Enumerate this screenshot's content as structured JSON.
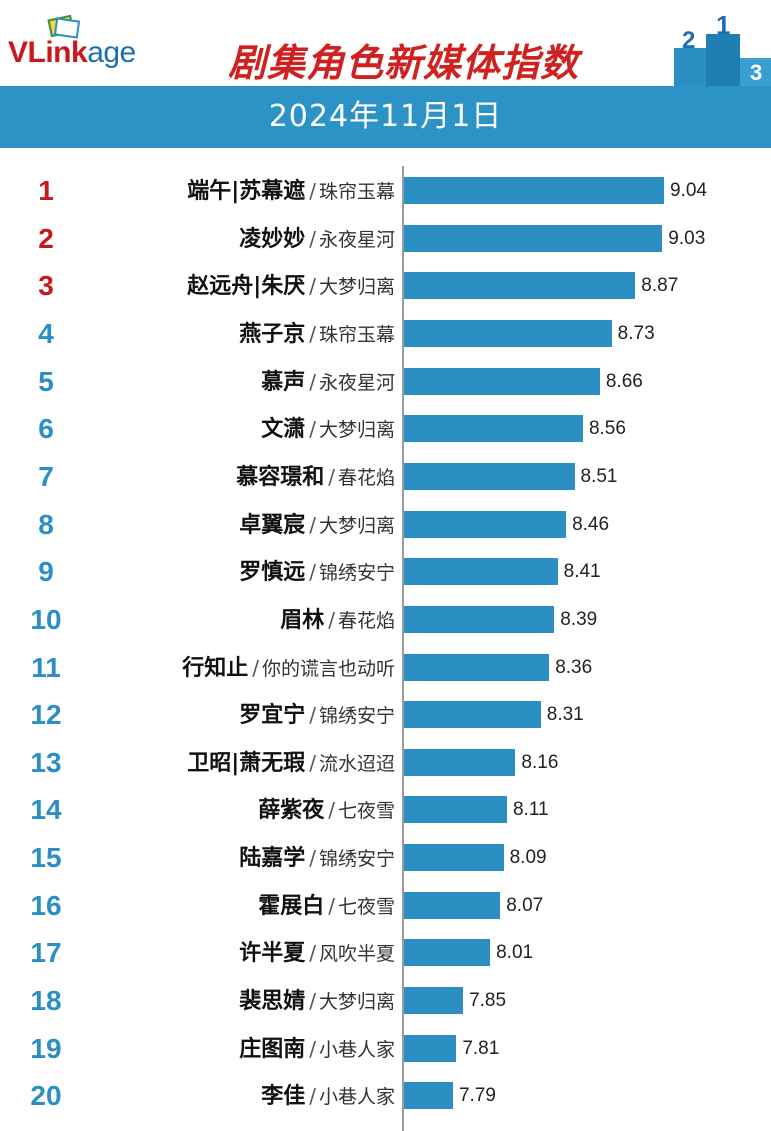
{
  "header": {
    "logo_text_a": "VLink",
    "logo_text_b": "age",
    "title": "剧集角色新媒体指数",
    "date": "2024年11月1日"
  },
  "colors": {
    "top_rank": "#c8181e",
    "other_rank": "#2b8fc4",
    "bar": "#2b8fc4",
    "banner": "#2b93c6",
    "title": "#d02020"
  },
  "chart_data": {
    "type": "bar",
    "orientation": "horizontal",
    "title": "剧集角色新媒体指数",
    "subtitle": "2024年11月1日",
    "xlim": [
      0,
      9.04
    ],
    "rows": [
      {
        "rank": "1",
        "character": "端午|苏幕遮",
        "drama": "珠帘玉幕",
        "value": 9.04,
        "value_label": "9.04"
      },
      {
        "rank": "2",
        "character": "凌妙妙",
        "drama": "永夜星河",
        "value": 9.03,
        "value_label": "9.03"
      },
      {
        "rank": "3",
        "character": "赵远舟|朱厌",
        "drama": "大梦归离",
        "value": 8.87,
        "value_label": "8.87"
      },
      {
        "rank": "4",
        "character": "燕子京",
        "drama": "珠帘玉幕",
        "value": 8.73,
        "value_label": "8.73"
      },
      {
        "rank": "5",
        "character": "慕声",
        "drama": "永夜星河",
        "value": 8.66,
        "value_label": "8.66"
      },
      {
        "rank": "6",
        "character": "文潇",
        "drama": "大梦归离",
        "value": 8.56,
        "value_label": "8.56"
      },
      {
        "rank": "7",
        "character": "慕容璟和",
        "drama": "春花焰",
        "value": 8.51,
        "value_label": "8.51"
      },
      {
        "rank": "8",
        "character": "卓翼宸",
        "drama": "大梦归离",
        "value": 8.46,
        "value_label": "8.46"
      },
      {
        "rank": "9",
        "character": "罗慎远",
        "drama": "锦绣安宁",
        "value": 8.41,
        "value_label": "8.41"
      },
      {
        "rank": "10",
        "character": "眉林",
        "drama": "春花焰",
        "value": 8.39,
        "value_label": "8.39"
      },
      {
        "rank": "11",
        "character": "行知止",
        "drama": "你的谎言也动听",
        "value": 8.36,
        "value_label": "8.36"
      },
      {
        "rank": "12",
        "character": "罗宜宁",
        "drama": "锦绣安宁",
        "value": 8.31,
        "value_label": "8.31"
      },
      {
        "rank": "13",
        "character": "卫昭|萧无瑕",
        "drama": "流水迢迢",
        "value": 8.16,
        "value_label": "8.16"
      },
      {
        "rank": "14",
        "character": "薛紫夜",
        "drama": "七夜雪",
        "value": 8.11,
        "value_label": "8.11"
      },
      {
        "rank": "15",
        "character": "陆嘉学",
        "drama": "锦绣安宁",
        "value": 8.09,
        "value_label": "8.09"
      },
      {
        "rank": "16",
        "character": "霍展白",
        "drama": "七夜雪",
        "value": 8.07,
        "value_label": "8.07"
      },
      {
        "rank": "17",
        "character": "许半夏",
        "drama": "风吹半夏",
        "value": 8.01,
        "value_label": "8.01"
      },
      {
        "rank": "18",
        "character": "裴思婧",
        "drama": "大梦归离",
        "value": 7.85,
        "value_label": "7.85"
      },
      {
        "rank": "19",
        "character": "庄图南",
        "drama": "小巷人家",
        "value": 7.81,
        "value_label": "7.81"
      },
      {
        "rank": "20",
        "character": "李佳",
        "drama": "小巷人家",
        "value": 7.79,
        "value_label": "7.79"
      }
    ]
  }
}
